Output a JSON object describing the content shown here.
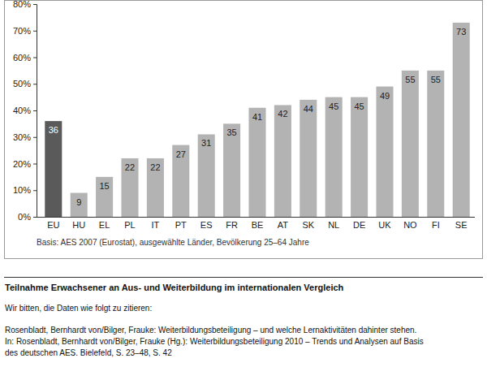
{
  "chart_data": {
    "type": "bar",
    "title": "Teilnahme Erwachsener an Aus- und Weiterbildung im internationalen Vergleich",
    "note": "Basis: AES 2007 (Eurostat), ausgewählte Länder, Bevölkerung 25–64 Jahre",
    "annotations": [
      "Wir bitten, die Daten wie folgt zu zitieren:",
      "Rosenbladt, Bernhardt von/Bilger, Frauke: Weiterbildungsbeteiligung – und welche Lernaktivitäten dahinter stehen.",
      "In: Rosenbladt, Bernhardt von/Bilger, Frauke (Hg.): Weiterbildungsbeteiligung 2010 – Trends und Analysen auf Basis",
      "des deutschen AES. Bielefeld, S. 23–48, S. 42"
    ],
    "categories": [
      "EU",
      "HU",
      "EL",
      "PL",
      "IT",
      "PT",
      "ES",
      "FR",
      "BE",
      "AT",
      "SK",
      "NL",
      "DE",
      "UK",
      "NO",
      "FI",
      "SE"
    ],
    "values": [
      36,
      9,
      15,
      22,
      22,
      27,
      31,
      35,
      41,
      42,
      44,
      45,
      45,
      49,
      55,
      55,
      73
    ],
    "colors": [
      "#5a5a5a",
      "#b3b3b3",
      "#b3b3b3",
      "#b3b3b3",
      "#b3b3b3",
      "#b3b3b3",
      "#b3b3b3",
      "#b3b3b3",
      "#b3b3b3",
      "#b3b3b3",
      "#b3b3b3",
      "#b3b3b3",
      "#b3b3b3",
      "#b3b3b3",
      "#b3b3b3",
      "#b3b3b3",
      "#b3b3b3"
    ],
    "ylim": [
      0,
      80
    ],
    "yticks": [
      {
        "value": 0,
        "label": "0%"
      },
      {
        "value": 10,
        "label": "10%"
      },
      {
        "value": 20,
        "label": "20%"
      },
      {
        "value": 30,
        "label": "30%"
      },
      {
        "value": 40,
        "label": "40%"
      },
      {
        "value": 50,
        "label": "50%"
      },
      {
        "value": 60,
        "label": "60%"
      },
      {
        "value": 70,
        "label": "70%"
      },
      {
        "value": 80,
        "label": "80%"
      }
    ],
    "grid": false,
    "data_labels": true
  }
}
